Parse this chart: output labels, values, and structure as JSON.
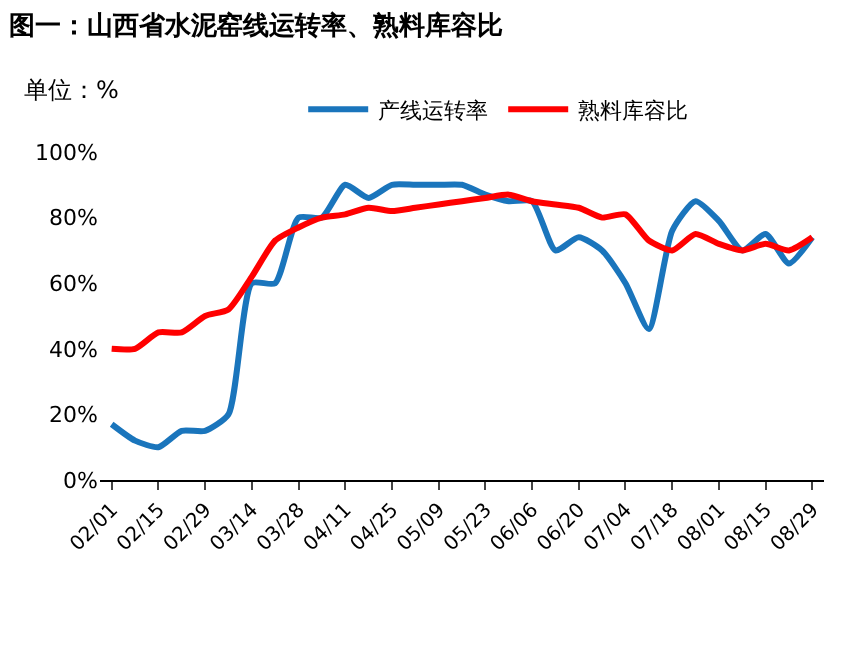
{
  "chart_data": {
    "type": "line",
    "title": "图一：山西省水泥窑线运转率、熟料库容比",
    "ylabel": "单位：%",
    "categories": [
      "02/01",
      null,
      "02/15",
      null,
      "02/29",
      null,
      "03/14",
      null,
      "03/28",
      null,
      "04/11",
      null,
      "04/25",
      null,
      "05/09",
      null,
      "05/23",
      null,
      "06/06",
      null,
      "06/20",
      null,
      "07/04",
      null,
      "07/18",
      null,
      "08/01",
      null,
      "08/15",
      null,
      "08/29"
    ],
    "series": [
      {
        "name": "产线运转率",
        "color": "#1a75bc",
        "values": [
          17,
          12,
          10,
          15,
          15,
          20,
          60,
          60,
          80,
          80,
          90,
          86,
          90,
          90,
          90,
          90,
          87,
          85,
          85,
          70,
          74,
          70,
          60,
          46,
          76,
          85,
          79,
          70,
          75,
          66,
          74
        ]
      },
      {
        "name": "熟料库容比",
        "color": "#ff0000",
        "values": [
          40,
          40,
          45,
          45,
          50,
          52,
          62,
          73,
          77,
          80,
          81,
          83,
          82,
          83,
          84,
          85,
          86,
          87,
          85,
          84,
          83,
          80,
          81,
          73,
          70,
          75,
          72,
          70,
          72,
          70,
          74
        ]
      }
    ],
    "ylim": [
      0,
      100
    ],
    "yticks": [
      {
        "value": 0,
        "label": "0%"
      },
      {
        "value": 20,
        "label": "20%"
      },
      {
        "value": 40,
        "label": "40%"
      },
      {
        "value": 60,
        "label": "60%"
      },
      {
        "value": 80,
        "label": "80%"
      },
      {
        "value": 100,
        "label": "100%"
      }
    ],
    "legend": "top",
    "marker": "none",
    "line_style": "solid"
  }
}
